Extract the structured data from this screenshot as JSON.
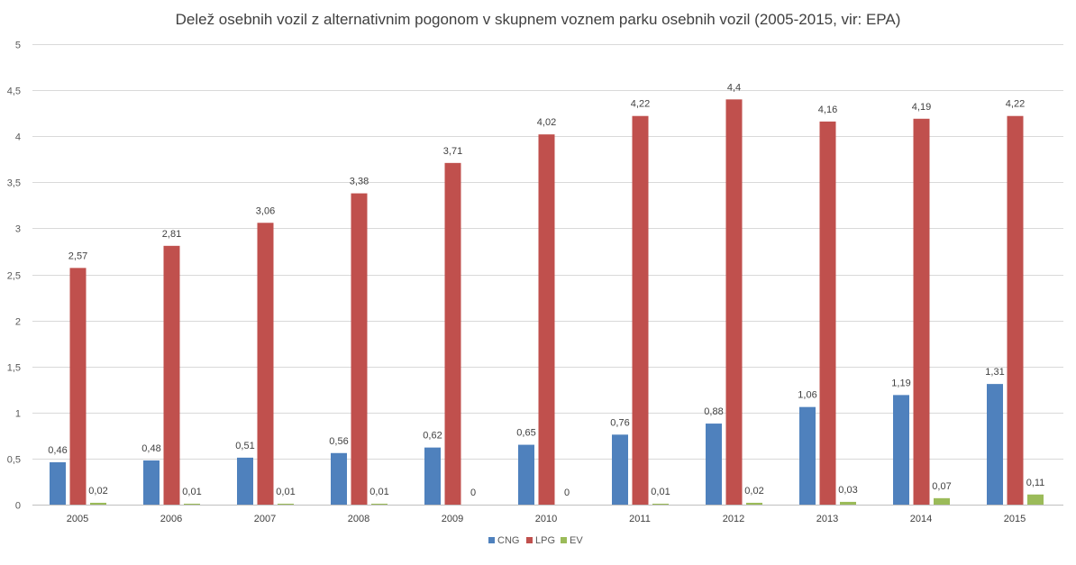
{
  "chart_data": {
    "type": "bar",
    "title": "Delež osebnih vozil z alternativnim pogonom v skupnem voznem parku osebnih vozil (2005-2015, vir: EPA)",
    "xlabel": "",
    "ylabel": "",
    "categories": [
      "2005",
      "2006",
      "2007",
      "2008",
      "2009",
      "2010",
      "2011",
      "2012",
      "2013",
      "2014",
      "2015"
    ],
    "ylim": [
      0,
      5
    ],
    "y_ticks": [
      "0",
      "0,5",
      "1",
      "1,5",
      "2",
      "2,5",
      "3",
      "3,5",
      "4",
      "4,5",
      "5"
    ],
    "grid": true,
    "legend_position": "bottom",
    "series": [
      {
        "name": "CNG",
        "color": "#4f81bd",
        "values": [
          0.46,
          0.48,
          0.51,
          0.56,
          0.62,
          0.65,
          0.76,
          0.88,
          1.06,
          1.19,
          1.31
        ],
        "labels": [
          "0,46",
          "0,48",
          "0,51",
          "0,56",
          "0,62",
          "0,65",
          "0,76",
          "0,88",
          "1,06",
          "1,19",
          "1,31"
        ]
      },
      {
        "name": "LPG",
        "color": "#c0504d",
        "values": [
          2.57,
          2.81,
          3.06,
          3.38,
          3.71,
          4.02,
          4.22,
          4.4,
          4.16,
          4.19,
          4.22
        ],
        "labels": [
          "2,57",
          "2,81",
          "3,06",
          "3,38",
          "3,71",
          "4,02",
          "4,22",
          "4,4",
          "4,16",
          "4,19",
          "4,22"
        ]
      },
      {
        "name": "EV",
        "color": "#9bbb59",
        "values": [
          0.02,
          0.01,
          0.01,
          0.01,
          0,
          0,
          0.01,
          0.02,
          0.03,
          0.07,
          0.11
        ],
        "labels": [
          "0,02",
          "0,01",
          "0,01",
          "0,01",
          "0",
          "0",
          "0,01",
          "0,02",
          "0,03",
          "0,07",
          "0,11"
        ]
      }
    ]
  }
}
